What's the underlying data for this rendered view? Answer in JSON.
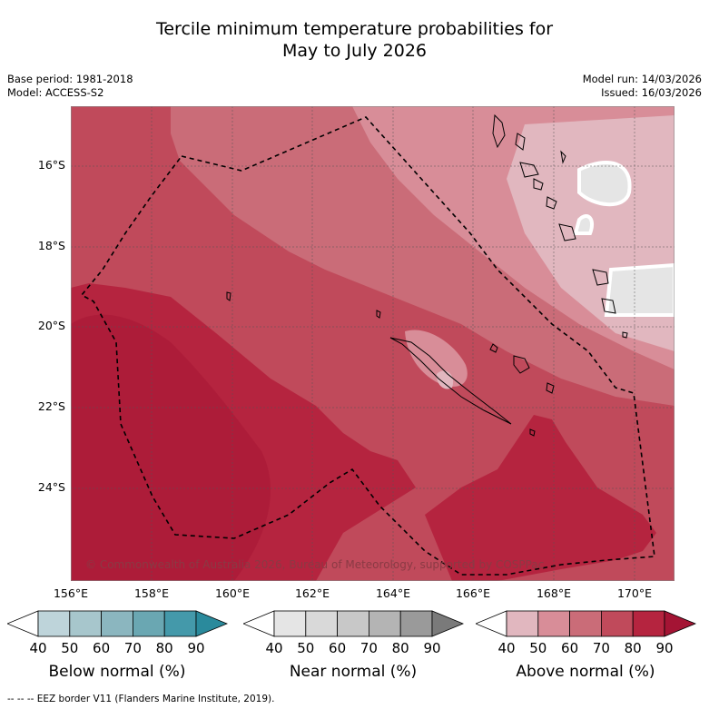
{
  "title": {
    "line1": "Tercile minimum temperature probabilities for",
    "line2": "May to July 2026"
  },
  "meta": {
    "base_period": "Base period: 1981-2018",
    "model": "Model: ACCESS-S2",
    "model_run": "Model run: 14/03/2026",
    "issued": "Issued: 16/03/2026"
  },
  "axes": {
    "lat_labels": [
      "16°S",
      "18°S",
      "20°S",
      "22°S",
      "24°S"
    ],
    "lon_labels": [
      "156°E",
      "158°E",
      "160°E",
      "162°E",
      "164°E",
      "166°E",
      "168°E",
      "170°E"
    ]
  },
  "copyright": "© Commonwealth of Australia 2026, Bureau of Meteorology, supported by COSPPac",
  "legends": [
    {
      "title": "Below normal (%)",
      "ticks": [
        "40",
        "50",
        "60",
        "70",
        "80",
        "90"
      ],
      "colors": [
        "#bed4da",
        "#a7c6cc",
        "#8bb6bf",
        "#6aa7b2",
        "#4499aa",
        "#2a8a9c"
      ]
    },
    {
      "title": "Near normal (%)",
      "ticks": [
        "40",
        "50",
        "60",
        "70",
        "80",
        "90"
      ],
      "colors": [
        "#e5e5e5",
        "#d9d9d9",
        "#c8c8c8",
        "#b4b4b4",
        "#9a9a9a",
        "#7a7a7a"
      ]
    },
    {
      "title": "Above normal (%)",
      "ticks": [
        "40",
        "50",
        "60",
        "70",
        "80",
        "90"
      ],
      "colors": [
        "#e1b7bf",
        "#d88d98",
        "#ca6c78",
        "#c04a5b",
        "#b5243f",
        "#a41434"
      ]
    }
  ],
  "eez_note": "--  --  -- EEZ border V11 (Flanders Marine Institute, 2019)."
}
